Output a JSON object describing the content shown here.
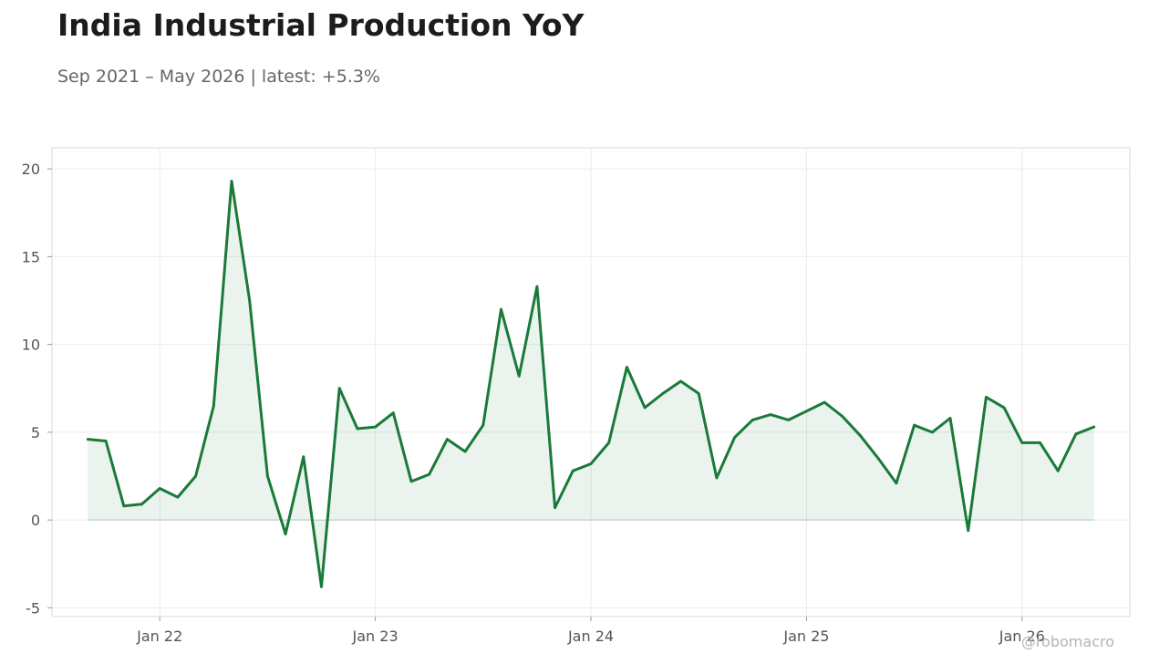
{
  "header": {
    "title": "India Industrial Production YoY",
    "subtitle": "Sep 2021 – May 2026 | latest: +5.3%"
  },
  "watermark": "@robomacro",
  "colors": {
    "line": "#1a7a3a",
    "fill": "#1a7a3a",
    "grid": "#ebebeb",
    "frame": "#d9d9d9",
    "text": "#555555"
  },
  "chart_data": {
    "type": "area",
    "title": "India Industrial Production YoY",
    "subtitle": "Sep 2021 – May 2026 | latest: +5.3%",
    "xlabel": "",
    "ylabel": "",
    "grid": true,
    "ylim": [
      -5.5,
      21.2
    ],
    "yticks": [
      -5,
      0,
      5,
      10,
      15,
      20
    ],
    "ytick_labels": [
      "-5",
      "0",
      "5",
      "10",
      "15",
      "20"
    ],
    "xticks": [
      "2022-01",
      "2023-01",
      "2024-01",
      "2025-01",
      "2026-01"
    ],
    "xtick_labels": [
      "Jan 22",
      "Jan 23",
      "Jan 24",
      "Jan 25",
      "Jan 26"
    ],
    "x_range": [
      "2021-07",
      "2026-07"
    ],
    "series": [
      {
        "x": [
          "2021-09",
          "2021-10",
          "2021-11",
          "2021-12",
          "2022-01",
          "2022-02",
          "2022-03",
          "2022-04",
          "2022-05",
          "2022-06",
          "2022-07",
          "2022-08",
          "2022-09",
          "2022-10",
          "2022-11",
          "2022-12",
          "2023-01",
          "2023-02",
          "2023-03",
          "2023-04",
          "2023-05",
          "2023-06",
          "2023-07",
          "2023-08",
          "2023-09",
          "2023-10",
          "2023-11",
          "2023-12",
          "2024-01",
          "2024-02",
          "2024-03",
          "2024-04",
          "2024-05",
          "2024-06",
          "2024-07",
          "2024-08",
          "2024-09",
          "2024-10",
          "2024-11",
          "2024-12",
          "2025-01",
          "2025-02",
          "2025-03",
          "2025-04",
          "2025-05",
          "2025-06",
          "2025-07",
          "2025-08",
          "2025-09",
          "2025-10",
          "2025-11",
          "2025-12",
          "2026-01",
          "2026-02",
          "2026-03",
          "2026-04",
          "2026-05"
        ],
        "values": [
          4.6,
          4.5,
          0.8,
          0.9,
          1.8,
          1.3,
          2.5,
          6.5,
          19.3,
          12.5,
          2.5,
          -0.8,
          3.6,
          -3.8,
          7.5,
          5.2,
          5.3,
          6.1,
          2.2,
          2.6,
          4.6,
          3.9,
          5.4,
          12.0,
          8.2,
          13.3,
          0.7,
          2.8,
          3.2,
          4.4,
          8.7,
          6.4,
          7.2,
          7.9,
          7.2,
          2.4,
          4.7,
          5.7,
          6.0,
          5.7,
          6.2,
          6.7,
          5.9,
          4.8,
          3.5,
          2.1,
          5.4,
          5.0,
          5.8,
          -0.6,
          7.0,
          6.4,
          4.4,
          4.4,
          2.8,
          4.9,
          5.3
        ]
      }
    ]
  }
}
